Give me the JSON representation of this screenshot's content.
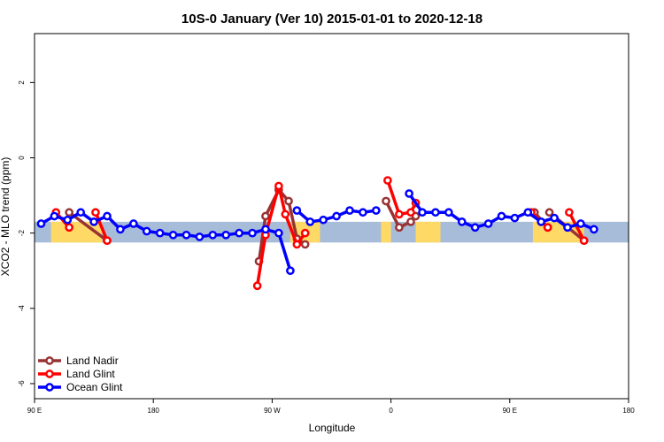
{
  "chart_data": {
    "type": "line",
    "title": "10S-0 January (Ver 10)   2015-01-01 to 2020-12-18",
    "xlabel": "Longitude",
    "ylabel": "XCO2 - MLO trend (ppm)",
    "xlim": [
      90,
      450
    ],
    "ylim": [
      -6.4,
      3.3
    ],
    "x_ticks": [
      {
        "value": 90,
        "label": "90 E"
      },
      {
        "value": 162,
        "label": "180"
      },
      {
        "value": 234,
        "label": "90 W"
      },
      {
        "value": 306,
        "label": "0"
      },
      {
        "value": 378,
        "label": "90 E"
      },
      {
        "value": 450,
        "label": "180"
      }
    ],
    "y_ticks": [
      {
        "value": 2,
        "label": "2"
      },
      {
        "value": 0,
        "label": "0"
      },
      {
        "value": -2,
        "label": "-2"
      },
      {
        "value": -4,
        "label": "-4"
      },
      {
        "value": -6,
        "label": "-6"
      }
    ],
    "band": {
      "y_low": -2.25,
      "y_high": -1.7,
      "ocean_color": "#a7bcd9",
      "land_color": "#ffd966"
    },
    "land_regions": [
      [
        100,
        131
      ],
      [
        245,
        263
      ],
      [
        300,
        306
      ],
      [
        321,
        336
      ],
      [
        392,
        423
      ]
    ],
    "legend_position": "bottom-left",
    "series": [
      {
        "name": "Land Nadir",
        "color": "#993333",
        "segments": [
          [
            [
              226,
              -2.75
            ],
            [
              230,
              -1.55
            ],
            [
              238,
              -0.85
            ],
            [
              244,
              -1.15
            ],
            [
              249,
              -2.15
            ],
            [
              254,
              -2.3
            ]
          ],
          [
            [
              303,
              -1.15
            ],
            [
              311,
              -1.85
            ],
            [
              318,
              -1.7
            ],
            [
              321,
              -1.55
            ]
          ],
          [
            [
              111,
              -1.45
            ],
            [
              134,
              -2.2
            ]
          ],
          [
            [
              393,
              -1.45
            ],
            [
              401,
              -1.85
            ]
          ],
          [
            [
              402,
              -1.45
            ],
            [
              423,
              -2.2
            ]
          ]
        ]
      },
      {
        "name": "Land Glint",
        "color": "#ff0000",
        "segments": [
          [
            [
              103,
              -1.45
            ],
            [
              111,
              -1.85
            ]
          ],
          [
            [
              127,
              -1.45
            ],
            [
              134,
              -2.2
            ]
          ],
          [
            [
              225,
              -3.4
            ],
            [
              230,
              -2.05
            ],
            [
              238,
              -0.75
            ],
            [
              242,
              -1.5
            ],
            [
              249,
              -2.3
            ],
            [
              254,
              -2.0
            ]
          ],
          [
            [
              304,
              -0.6
            ],
            [
              311,
              -1.5
            ],
            [
              318,
              -1.45
            ],
            [
              321,
              -1.2
            ]
          ],
          [
            [
              391,
              -1.45
            ],
            [
              401,
              -1.85
            ]
          ],
          [
            [
              414,
              -1.45
            ],
            [
              423,
              -2.2
            ]
          ]
        ]
      },
      {
        "name": "Ocean Glint",
        "color": "#0000ff",
        "segments": [
          [
            [
              94,
              -1.75
            ],
            [
              102,
              -1.55
            ],
            [
              110,
              -1.65
            ],
            [
              118,
              -1.45
            ],
            [
              126,
              -1.7
            ],
            [
              134,
              -1.55
            ],
            [
              142,
              -1.9
            ],
            [
              150,
              -1.75
            ],
            [
              158,
              -1.95
            ],
            [
              166,
              -2.0
            ],
            [
              174,
              -2.05
            ],
            [
              182,
              -2.05
            ],
            [
              190,
              -2.1
            ],
            [
              198,
              -2.05
            ],
            [
              206,
              -2.05
            ],
            [
              214,
              -2.0
            ],
            [
              222,
              -2.0
            ],
            [
              230,
              -1.9
            ],
            [
              238,
              -2.0
            ],
            [
              245,
              -3.0
            ]
          ],
          [
            [
              249,
              -1.4
            ],
            [
              257,
              -1.7
            ],
            [
              265,
              -1.65
            ],
            [
              273,
              -1.55
            ],
            [
              281,
              -1.4
            ],
            [
              289,
              -1.45
            ],
            [
              297,
              -1.4
            ]
          ],
          [
            [
              317,
              -0.95
            ],
            [
              325,
              -1.45
            ],
            [
              333,
              -1.45
            ],
            [
              341,
              -1.45
            ],
            [
              349,
              -1.7
            ],
            [
              357,
              -1.85
            ],
            [
              365,
              -1.75
            ],
            [
              373,
              -1.55
            ],
            [
              381,
              -1.6
            ],
            [
              389,
              -1.45
            ],
            [
              397,
              -1.7
            ],
            [
              405,
              -1.6
            ],
            [
              413,
              -1.85
            ],
            [
              421,
              -1.75
            ],
            [
              429,
              -1.9
            ]
          ]
        ]
      }
    ]
  }
}
